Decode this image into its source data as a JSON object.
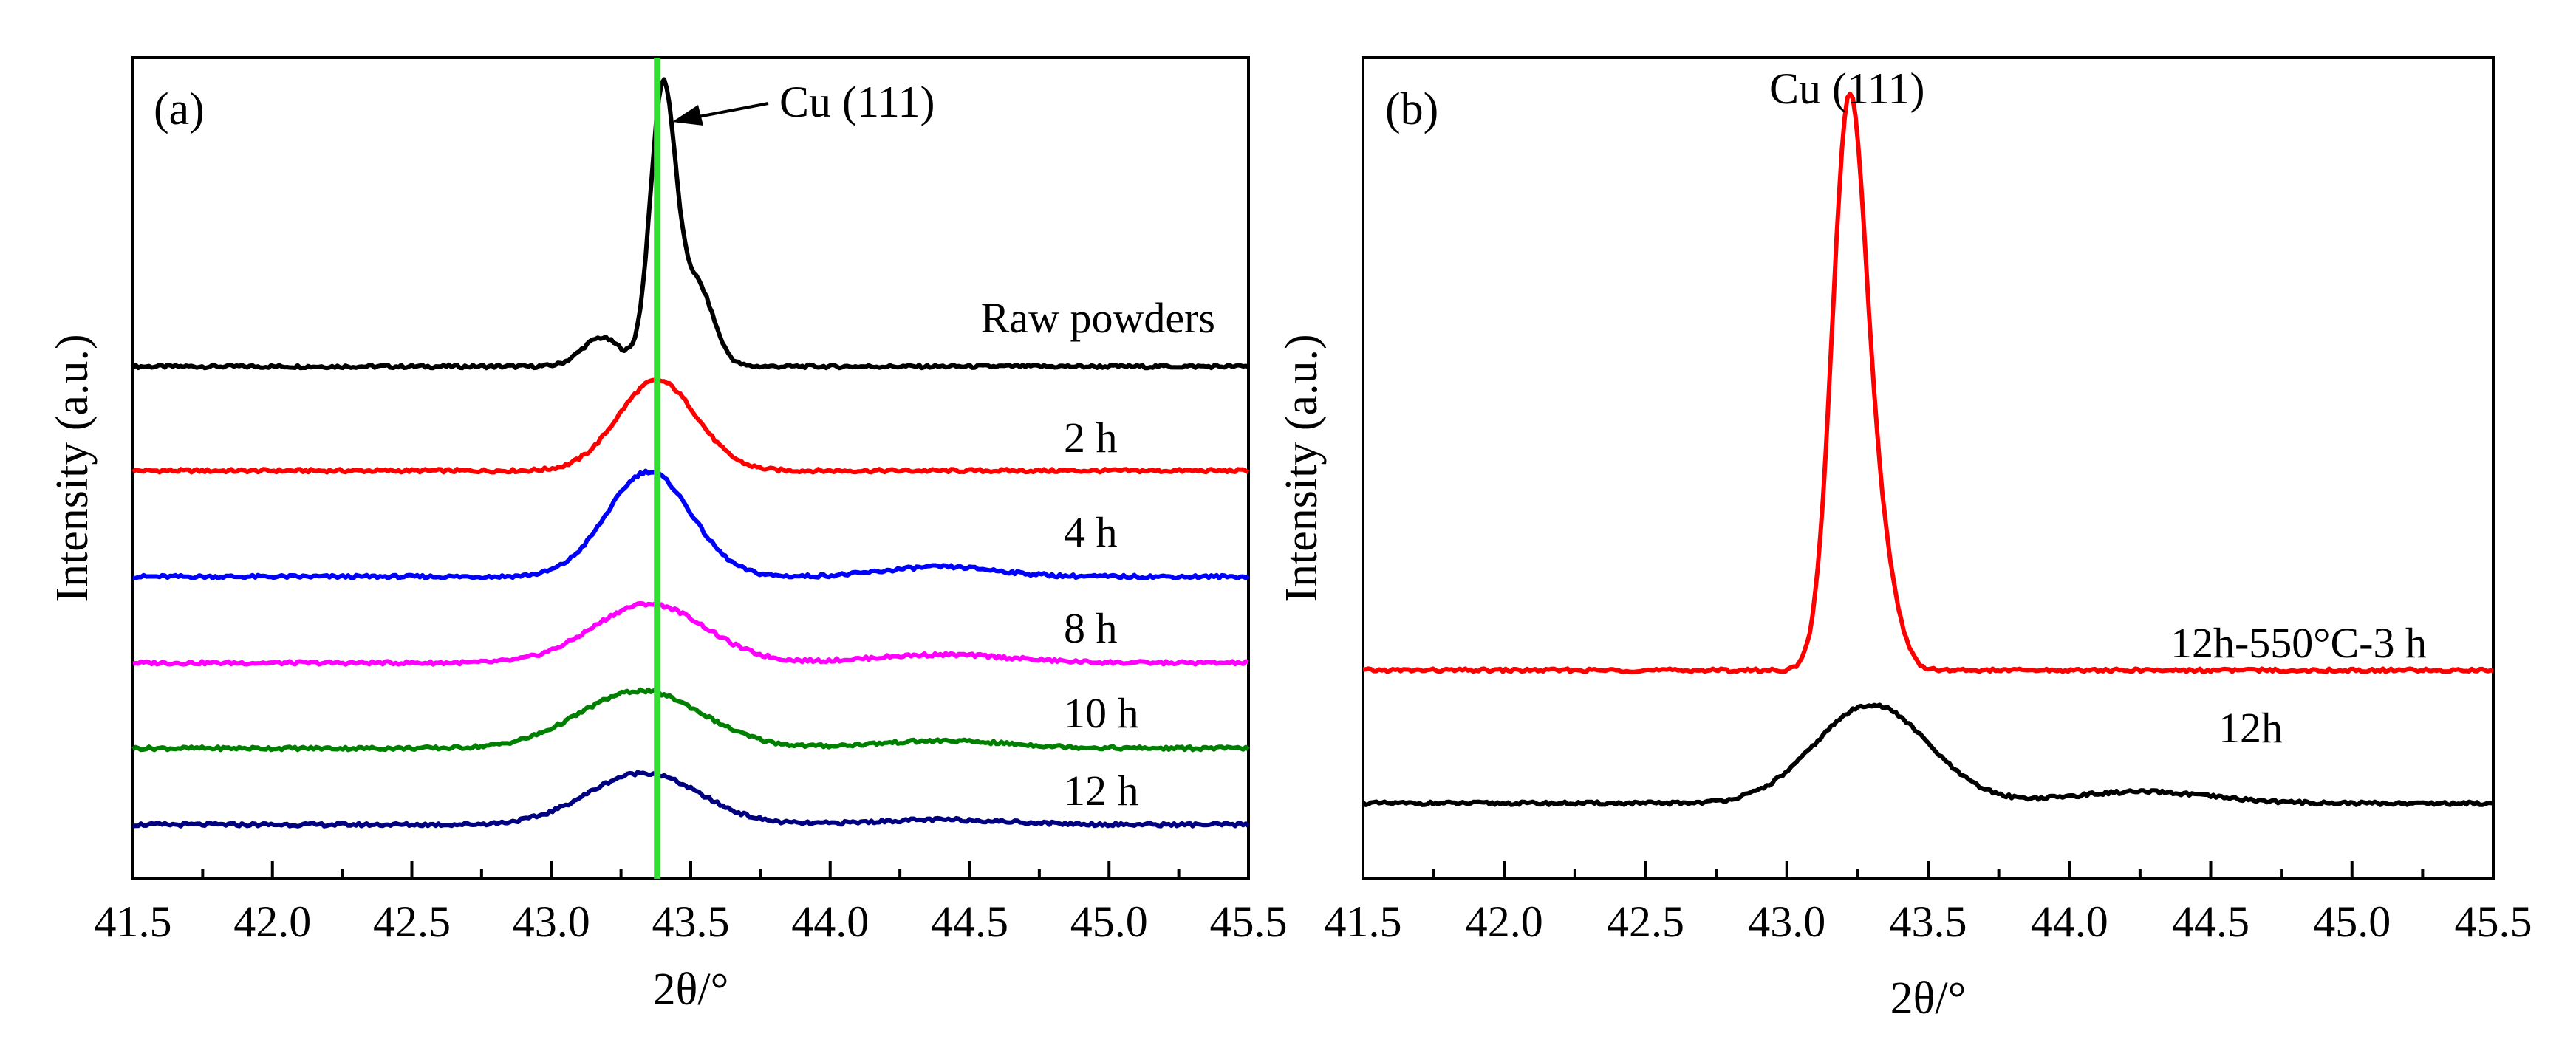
{
  "chart_data": [
    {
      "type": "line",
      "panel_label": "(a)",
      "xlabel": "2θ/°",
      "ylabel": "Intensity (a.u.)",
      "xlim": [
        41.5,
        45.5
      ],
      "ylim": [
        0,
        1
      ],
      "xticks": [
        41.5,
        42.0,
        42.5,
        43.0,
        43.5,
        44.0,
        44.5,
        45.0,
        45.5
      ],
      "xtick_labels": [
        "41.5",
        "42.0",
        "42.5",
        "43.0",
        "43.5",
        "44.0",
        "44.5",
        "45.0",
        "45.5"
      ],
      "reference_line": {
        "x": 43.38,
        "color": "#33dd33"
      },
      "annotation": "Cu (111)",
      "series": [
        {
          "name": "Raw powders",
          "color": "#000000",
          "baseline": 0.624,
          "peaks": [
            [
              43.4,
              0.335,
              0.045
            ],
            [
              43.52,
              0.1,
              0.06
            ],
            [
              43.18,
              0.035,
              0.07
            ]
          ]
        },
        {
          "name": "2 h",
          "color": "#ff0000",
          "baseline": 0.497,
          "peaks": [
            [
              43.38,
              0.11,
              0.14
            ]
          ]
        },
        {
          "name": "4 h",
          "color": "#0000ff",
          "baseline": 0.368,
          "peaks": [
            [
              43.35,
              0.128,
              0.15
            ],
            [
              44.4,
              0.012,
              0.2
            ]
          ]
        },
        {
          "name": "8 h",
          "color": "#ff00ff",
          "baseline": 0.263,
          "peaks": [
            [
              43.35,
              0.072,
              0.2
            ],
            [
              44.4,
              0.01,
              0.25
            ]
          ]
        },
        {
          "name": "10 h",
          "color": "#008000",
          "baseline": 0.159,
          "peaks": [
            [
              43.32,
              0.07,
              0.22
            ],
            [
              44.4,
              0.009,
              0.25
            ]
          ]
        },
        {
          "name": "12 h",
          "color": "#000080",
          "baseline": 0.066,
          "peaks": [
            [
              43.33,
              0.063,
              0.2
            ],
            [
              44.4,
              0.006,
              0.25
            ]
          ]
        }
      ]
    },
    {
      "type": "line",
      "panel_label": "(b)",
      "xlabel": "2θ/°",
      "ylabel": "Intensity (a.u.)",
      "xlim": [
        41.5,
        45.5
      ],
      "ylim": [
        0,
        1
      ],
      "xticks": [
        41.5,
        42.0,
        42.5,
        43.0,
        43.5,
        44.0,
        44.5,
        45.0,
        45.5
      ],
      "xtick_labels": [
        "41.5",
        "42.0",
        "42.5",
        "43.0",
        "43.5",
        "44.0",
        "44.5",
        "45.0",
        "45.5"
      ],
      "annotation": "Cu (111)",
      "series": [
        {
          "name": "12h-550°C-3 h",
          "color": "#ff0000",
          "baseline": 0.254,
          "peaks": [
            [
              43.22,
              0.68,
              0.06
            ],
            [
              43.33,
              0.12,
              0.06
            ]
          ]
        },
        {
          "name": "12h",
          "color": "#000000",
          "baseline": 0.092,
          "peaks": [
            [
              43.3,
              0.12,
              0.2
            ],
            [
              44.25,
              0.014,
              0.25
            ]
          ]
        }
      ]
    }
  ]
}
